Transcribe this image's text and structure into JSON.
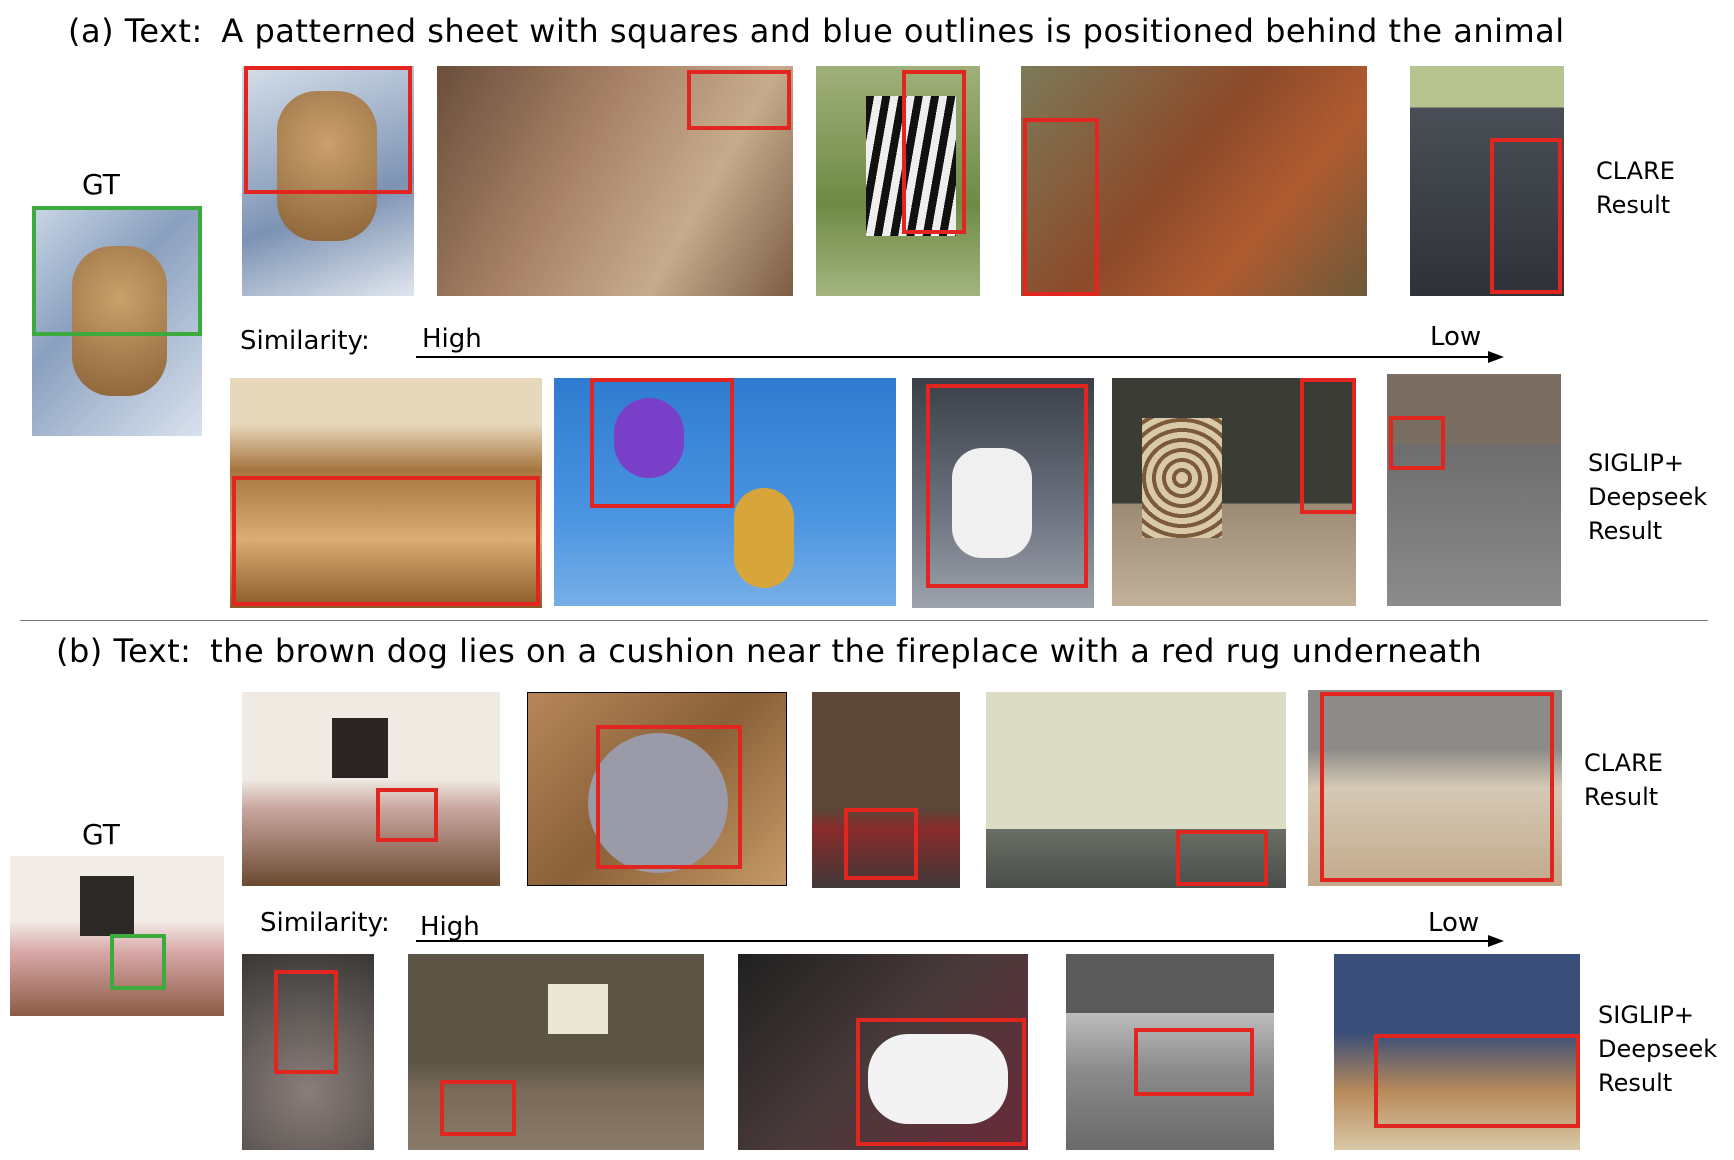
{
  "panel_a": {
    "heading_prefix": "(a)  Text:",
    "heading_text": "A patterned sheet with squares and blue outlines is positioned behind the animal",
    "gt_label": "GT",
    "similarity_label": "Similarity:",
    "high_label": "High",
    "low_label": "Low",
    "row1_label": [
      "CLARE",
      "Result"
    ],
    "row2_label": [
      "SIGLIP+",
      "Deepseek",
      "Result"
    ]
  },
  "panel_b": {
    "heading_prefix": "(b)  Text:",
    "heading_text": "the brown dog lies on a cushion near the fireplace with a red rug underneath",
    "gt_label": "GT",
    "similarity_label": "Similarity:",
    "high_label": "High",
    "low_label": "Low",
    "row1_label": [
      "CLARE",
      "Result"
    ],
    "row2_label": [
      "SIGLIP+",
      "Deepseek",
      "Result"
    ]
  },
  "colors": {
    "prediction_box": "#e0261e",
    "ground_truth_box": "#3caa3c"
  }
}
